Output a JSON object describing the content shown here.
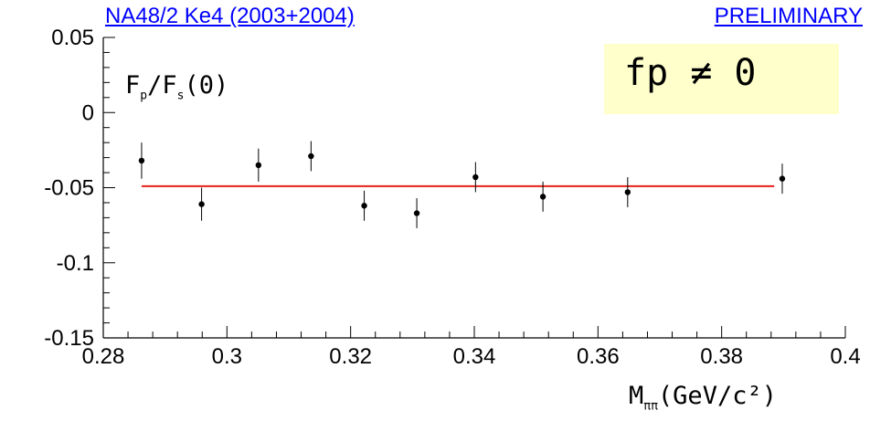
{
  "header": {
    "left_title": "NA48/2 Ke4 (2003+2004)",
    "right_title": "PRELIMINARY"
  },
  "annotation_box": {
    "text": "fp ≠ 0",
    "background": "#ffffcc"
  },
  "inplot_label": {
    "a": "F",
    "a_sub": "p",
    "slash": "/",
    "b": "F",
    "b_sub": "s",
    "tail": "(0)"
  },
  "x_axis_label": {
    "main": "M",
    "sub": "ππ",
    "unit": "(GeV/c²)"
  },
  "colors": {
    "fit_line": "#e8201a",
    "header_text": "#0000ff",
    "points": "#000000"
  },
  "chart_data": {
    "type": "scatter",
    "xlim": [
      0.28,
      0.4
    ],
    "ylim": [
      -0.15,
      0.05
    ],
    "xticks": [
      0.28,
      0.3,
      0.32,
      0.34,
      0.36,
      0.38,
      0.4
    ],
    "xtick_labels": [
      "0.28",
      "0.3",
      "0.32",
      "0.34",
      "0.36",
      "0.38",
      "0.4"
    ],
    "yticks": [
      -0.15,
      -0.1,
      -0.05,
      0,
      0.05
    ],
    "ytick_labels": [
      "-0.15",
      "-0.1",
      "-0.05",
      "0",
      "0.05"
    ],
    "grid": false,
    "points": [
      {
        "x": 0.2862,
        "y": -0.032,
        "err": 0.012
      },
      {
        "x": 0.2959,
        "y": -0.061,
        "err": 0.011
      },
      {
        "x": 0.3051,
        "y": -0.035,
        "err": 0.011
      },
      {
        "x": 0.3136,
        "y": -0.029,
        "err": 0.01
      },
      {
        "x": 0.3222,
        "y": -0.062,
        "err": 0.01
      },
      {
        "x": 0.3307,
        "y": -0.067,
        "err": 0.01
      },
      {
        "x": 0.3402,
        "y": -0.043,
        "err": 0.01
      },
      {
        "x": 0.3511,
        "y": -0.056,
        "err": 0.01
      },
      {
        "x": 0.3648,
        "y": -0.053,
        "err": 0.01
      },
      {
        "x": 0.3898,
        "y": -0.044,
        "err": 0.01
      }
    ],
    "fit": {
      "x_from": 0.2862,
      "x_to": 0.3885,
      "y": -0.049
    }
  }
}
